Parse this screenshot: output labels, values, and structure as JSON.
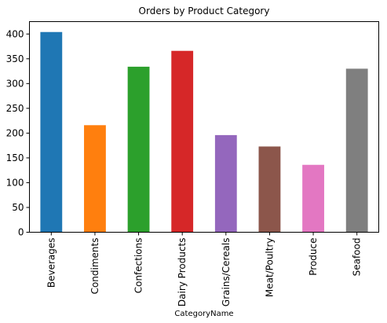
{
  "chart_data": {
    "type": "bar",
    "title": "Orders by Product Category",
    "xlabel": "CategoryName",
    "ylabel": "",
    "categories": [
      "Beverages",
      "Condiments",
      "Confections",
      "Dairy Products",
      "Grains/Cereals",
      "Meat/Poultry",
      "Produce",
      "Seafood"
    ],
    "values": [
      404,
      216,
      334,
      366,
      196,
      173,
      136,
      330
    ],
    "colors": [
      "#1f77b4",
      "#ff7f0e",
      "#2ca02c",
      "#d62728",
      "#9467bd",
      "#8c564b",
      "#e377c2",
      "#7f7f7f"
    ],
    "ylim": [
      0,
      425
    ],
    "yticks": [
      0,
      50,
      100,
      150,
      200,
      250,
      300,
      350,
      400
    ],
    "grid": false,
    "legend": "none"
  }
}
